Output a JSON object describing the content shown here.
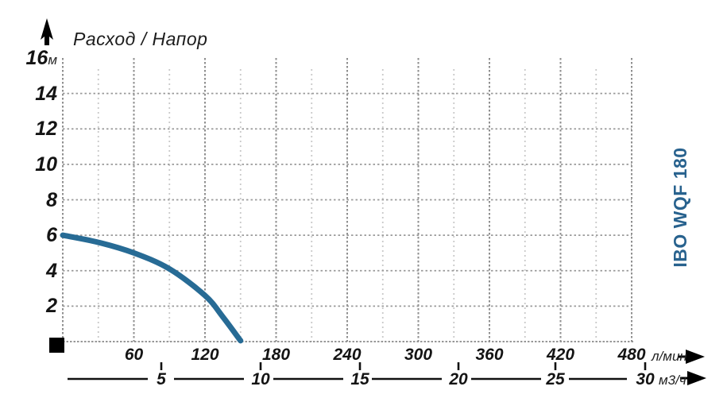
{
  "chart": {
    "title": "Расход / Напор",
    "model_label": "IBO WQF 180",
    "y_axis": {
      "unit": "м",
      "ticks": [
        "16",
        "14",
        "12",
        "10",
        "8",
        "6",
        "4",
        "2"
      ]
    },
    "x_axis_lmin": {
      "unit": "л/мин",
      "ticks": [
        "60",
        "120",
        "180",
        "240",
        "300",
        "360",
        "420",
        "480"
      ]
    },
    "x_axis_m3h": {
      "unit": "м3/ч",
      "ticks": [
        "5",
        "10",
        "15",
        "20",
        "25",
        "30"
      ]
    }
  },
  "chart_data": {
    "type": "line",
    "title": "Расход / Напор",
    "series": [
      {
        "name": "IBO WQF 180",
        "points": [
          [
            0,
            6.0
          ],
          [
            30,
            5.6
          ],
          [
            60,
            5.0
          ],
          [
            90,
            4.1
          ],
          [
            120,
            2.6
          ],
          [
            135,
            1.4
          ],
          [
            150,
            0.05
          ]
        ]
      }
    ],
    "x_axis": {
      "label": "л/мин",
      "range": [
        0,
        480
      ],
      "ticks": [
        60,
        120,
        180,
        240,
        300,
        360,
        420,
        480
      ]
    },
    "x_axis_secondary": {
      "label": "м3/ч",
      "range": [
        0,
        30
      ],
      "ticks": [
        5,
        10,
        15,
        20,
        25,
        30
      ]
    },
    "y_axis": {
      "label": "м",
      "range": [
        0,
        16
      ],
      "ticks": [
        2,
        4,
        6,
        8,
        10,
        12,
        14,
        16
      ]
    },
    "grid": "dotted, major verticals every 60 л/мин, minor every 30 л/мин, horizontals every 2 м",
    "legend_position": "right-rotated"
  },
  "colors": {
    "curve": "#276b95",
    "model_label": "#28628e",
    "text": "#141414",
    "grid_major": "#8f8f8f",
    "grid_minor": "#c9c9c9"
  }
}
